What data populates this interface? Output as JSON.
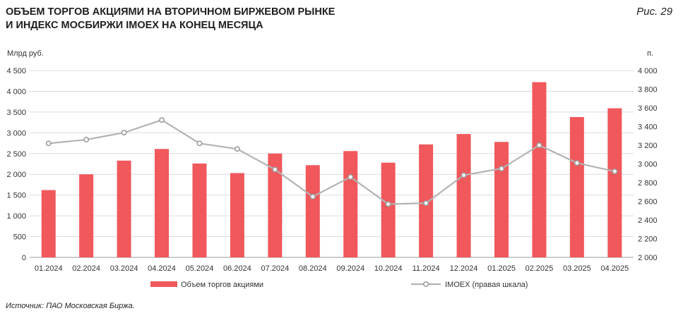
{
  "header": {
    "title_line1": "ОБЪЕМ ТОРГОВ АКЦИЯМИ НА ВТОРИЧНОМ БИРЖЕВОМ РЫНКЕ",
    "title_line2": "И ИНДЕКС МОСБИРЖИ IMOEX НА КОНЕЦ МЕСЯЦА",
    "figure_label": "Рис. 29"
  },
  "footer": {
    "source": "Источник: ПАО Московская Биржа."
  },
  "chart_data": {
    "type": "bar",
    "categories": [
      "01.2024",
      "02.2024",
      "03.2024",
      "04.2024",
      "05.2024",
      "06.2024",
      "07.2024",
      "08.2024",
      "09.2024",
      "10.2024",
      "11.2024",
      "12.2024",
      "01.2025",
      "02.2025",
      "03.2025",
      "04.2025"
    ],
    "y_left_label": "Млрд руб.",
    "y_right_label": "п.",
    "y_left_range": [
      0,
      4500
    ],
    "y_left_ticks": [
      "0",
      "500",
      "1 000",
      "1 500",
      "2 000",
      "2 500",
      "3 000",
      "3 500",
      "4 000",
      "4 500"
    ],
    "y_right_range": [
      2000,
      4000
    ],
    "y_right_ticks": [
      "2 000",
      "2 200",
      "2 400",
      "2 600",
      "2 800",
      "3 000",
      "3 200",
      "3 400",
      "3 600",
      "3 800",
      "4 000"
    ],
    "grid": true,
    "legend_position": "bottom",
    "series": [
      {
        "name": "Объем торгов акциями",
        "type": "bar",
        "axis": "left",
        "color": "#f0585c",
        "values": [
          1620,
          2000,
          2330,
          2610,
          2260,
          2030,
          2500,
          2220,
          2560,
          2280,
          2720,
          2970,
          2780,
          4220,
          3380,
          3590
        ]
      },
      {
        "name": "IMOEX (правая шкала)",
        "type": "line",
        "axis": "right",
        "color": "#b3b3b3",
        "values": [
          3220,
          3260,
          3335,
          3470,
          3220,
          3160,
          2940,
          2650,
          2860,
          2570,
          2580,
          2880,
          2950,
          3200,
          3010,
          2920
        ]
      }
    ]
  }
}
